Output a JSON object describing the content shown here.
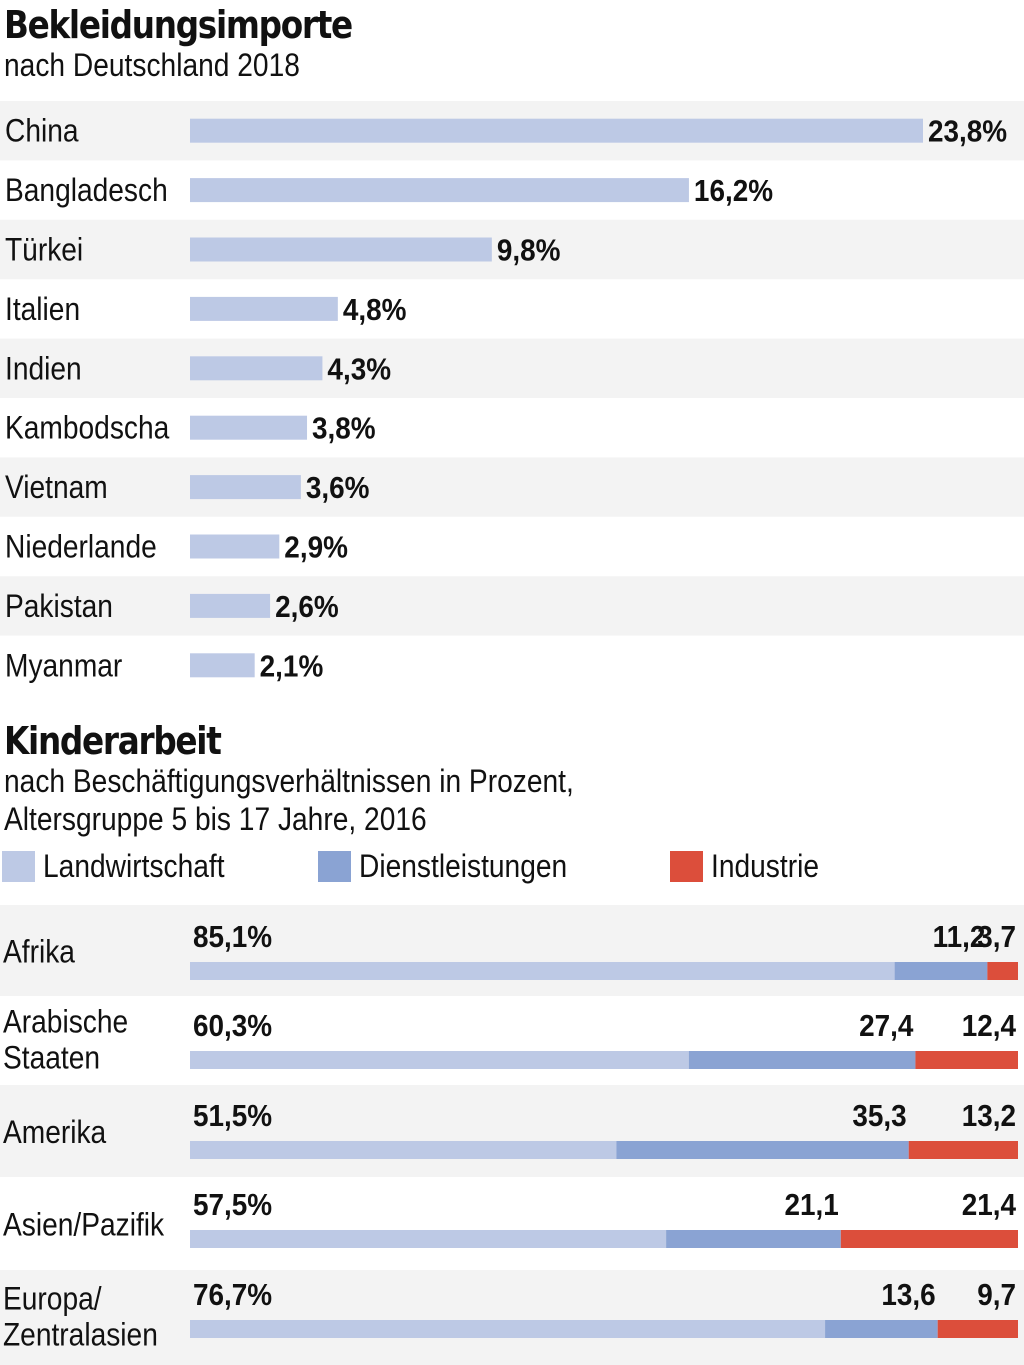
{
  "colors": {
    "landwirtschaft": "#bdc9e5",
    "dienstleistungen": "#8aa3d3",
    "industrie": "#dc4e3b",
    "stripe": "#f3f3f3"
  },
  "chart_data": [
    {
      "type": "bar",
      "title": "Bekleidungsimporte",
      "subtitle": "nach Deutschland 2018",
      "categories": [
        "China",
        "Bangladesch",
        "Türkei",
        "Italien",
        "Indien",
        "Kambodscha",
        "Vietnam",
        "Niederlande",
        "Pakistan",
        "Myanmar"
      ],
      "values": [
        23.8,
        16.2,
        9.8,
        4.8,
        4.3,
        3.8,
        3.6,
        2.9,
        2.6,
        2.1
      ],
      "value_labels": [
        "23,8%",
        "16,2%",
        "9,8%",
        "4,8%",
        "4,3%",
        "3,8%",
        "3,6%",
        "2,9%",
        "2,6%",
        "2,1%"
      ],
      "orientation": "horizontal"
    },
    {
      "type": "bar",
      "stacked": true,
      "orientation": "horizontal",
      "title": "Kinderarbeit",
      "subtitle_lines": [
        "nach Beschäftigungsverhältnissen in Prozent,",
        "Altersgruppe 5 bis 17 Jahre, 2016"
      ],
      "legend": [
        "Landwirtschaft",
        "Dienstleistungen",
        "Industrie"
      ],
      "categories": [
        [
          "Afrika"
        ],
        [
          "Arabische",
          "Staaten"
        ],
        [
          "Amerika"
        ],
        [
          "Asien/Pazifik"
        ],
        [
          "Europa/",
          "Zentralasien"
        ]
      ],
      "series": [
        {
          "name": "Landwirtschaft",
          "values": [
            85.1,
            60.3,
            51.5,
            57.5,
            76.7
          ],
          "labels": [
            "85,1%",
            "60,3%",
            "51,5%",
            "57,5%",
            "76,7%"
          ]
        },
        {
          "name": "Dienstleistungen",
          "values": [
            11.2,
            27.4,
            35.3,
            21.1,
            13.6
          ],
          "labels": [
            "11,2",
            "27,4",
            "35,3",
            "21,1",
            "13,6"
          ]
        },
        {
          "name": "Industrie",
          "values": [
            3.7,
            12.4,
            13.2,
            21.4,
            9.7
          ],
          "labels": [
            "3,7",
            "12,4",
            "13,2",
            "21,4",
            "9,7"
          ]
        }
      ]
    }
  ]
}
